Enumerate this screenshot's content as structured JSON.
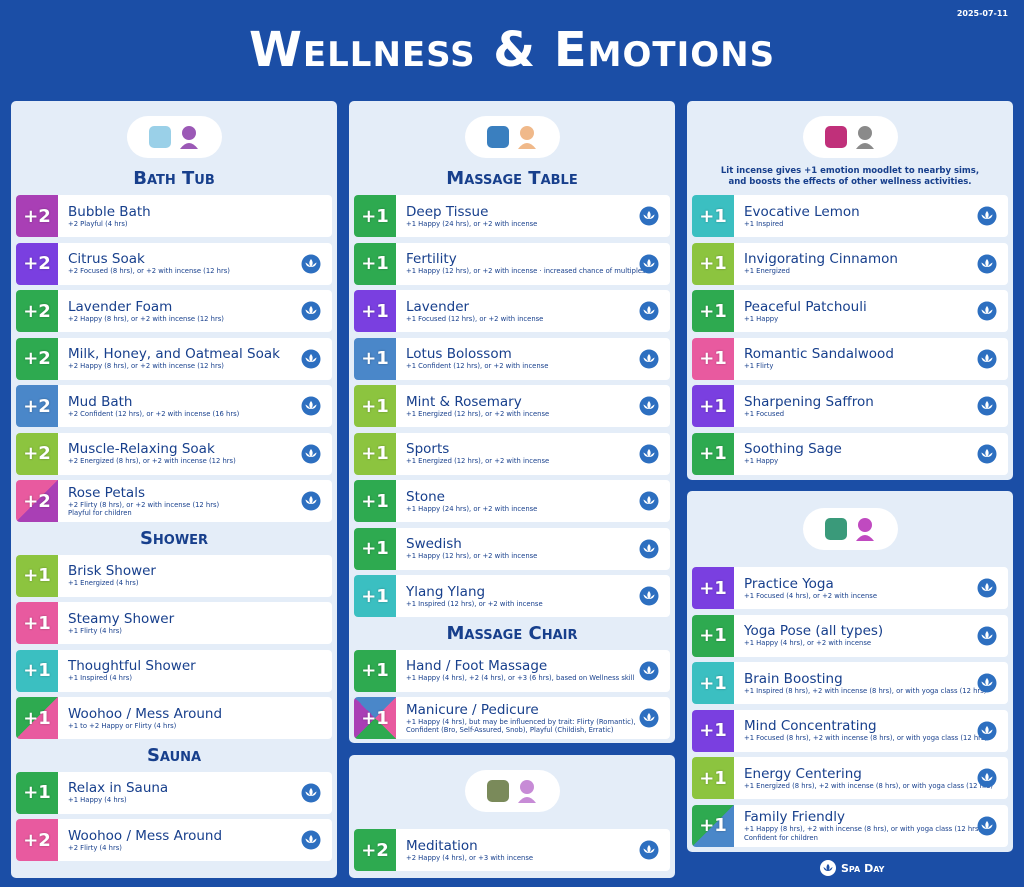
{
  "header": {
    "title": "Wellness & Emotions",
    "date": "2025-07-11"
  },
  "columns": [
    {
      "cards": [
        {
          "sections": [
            {
              "heading": "Bath Tub",
              "items": [
                {
                  "badge": "+2",
                  "name": "Bubble Bath",
                  "details": [
                    "+2 Playful (4 hrs)"
                  ],
                  "colors": [
                    "#a93fb5"
                  ],
                  "incense": false
                },
                {
                  "badge": "+2",
                  "name": "Citrus Soak",
                  "details": [
                    "+2 Focused (8 hrs), or +2 with incense (12 hrs)"
                  ],
                  "colors": [
                    "#7a3fe0"
                  ],
                  "incense": true
                },
                {
                  "badge": "+2",
                  "name": "Lavender Foam",
                  "details": [
                    "+2 Happy (8 hrs), or +2 with incense (12 hrs)"
                  ],
                  "colors": [
                    "#2eaa50"
                  ],
                  "incense": true
                },
                {
                  "badge": "+2",
                  "name": "Milk, Honey, and Oatmeal Soak",
                  "details": [
                    "+2 Happy (8 hrs), or +2 with incense (12 hrs)"
                  ],
                  "colors": [
                    "#2eaa50"
                  ],
                  "incense": true
                },
                {
                  "badge": "+2",
                  "name": "Mud Bath",
                  "details": [
                    "+2 Confident (12 hrs), or +2 with incense (16 hrs)"
                  ],
                  "colors": [
                    "#4a87c9"
                  ],
                  "incense": true
                },
                {
                  "badge": "+2",
                  "name": "Muscle-Relaxing Soak",
                  "details": [
                    "+2 Energized (8 hrs), or +2 with incense (12 hrs)"
                  ],
                  "colors": [
                    "#8cc43f"
                  ],
                  "incense": true
                },
                {
                  "badge": "+2",
                  "name": "Rose Petals",
                  "details": [
                    "+2 Flirty (8 hrs), or +2 with incense (12 hrs)",
                    "Playful for children"
                  ],
                  "colors": [
                    "#e85a9f",
                    "#a93fb5"
                  ],
                  "incense": true
                }
              ]
            },
            {
              "heading": "Shower",
              "items": [
                {
                  "badge": "+1",
                  "name": "Brisk Shower",
                  "details": [
                    "+1 Energized (4 hrs)"
                  ],
                  "colors": [
                    "#8cc43f"
                  ],
                  "incense": false
                },
                {
                  "badge": "+1",
                  "name": "Steamy Shower",
                  "details": [
                    "+1 Flirty (4 hrs)"
                  ],
                  "colors": [
                    "#e85a9f"
                  ],
                  "incense": false
                },
                {
                  "badge": "+1",
                  "name": "Thoughtful Shower",
                  "details": [
                    "+1 Inspired (4 hrs)"
                  ],
                  "colors": [
                    "#3bbfc1"
                  ],
                  "incense": false
                },
                {
                  "badge": "+1",
                  "name": "Woohoo / Mess Around",
                  "details": [
                    "+1 to +2 Happy or Flirty (4 hrs)"
                  ],
                  "colors": [
                    "#2eaa50",
                    "#e85a9f"
                  ],
                  "incense": false
                }
              ]
            },
            {
              "heading": "Sauna",
              "items": [
                {
                  "badge": "+1",
                  "name": "Relax in Sauna",
                  "details": [
                    "+1 Happy (4 hrs)"
                  ],
                  "colors": [
                    "#2eaa50"
                  ],
                  "incense": true
                },
                {
                  "badge": "+2",
                  "name": "Woohoo / Mess Around",
                  "details": [
                    "+2 Flirty (4 hrs)"
                  ],
                  "colors": [
                    "#e85a9f"
                  ],
                  "incense": true
                }
              ]
            }
          ]
        }
      ]
    },
    {
      "cards": [
        {
          "sections": [
            {
              "heading": "Massage Table",
              "items": [
                {
                  "badge": "+1",
                  "name": "Deep Tissue",
                  "details": [
                    "+1 Happy (24 hrs), or +2 with incense"
                  ],
                  "colors": [
                    "#2eaa50"
                  ],
                  "incense": true
                },
                {
                  "badge": "+1",
                  "name": "Fertility",
                  "details": [
                    "+1 Happy (12 hrs), or +2 with incense · increased chance of multiples"
                  ],
                  "colors": [
                    "#2eaa50"
                  ],
                  "incense": true
                },
                {
                  "badge": "+1",
                  "name": "Lavender",
                  "details": [
                    "+1 Focused (12 hrs), or +2 with incense"
                  ],
                  "colors": [
                    "#7a3fe0"
                  ],
                  "incense": true
                },
                {
                  "badge": "+1",
                  "name": "Lotus Bolossom",
                  "details": [
                    "+1 Confident (12 hrs), or +2 with incense"
                  ],
                  "colors": [
                    "#4a87c9"
                  ],
                  "incense": true
                },
                {
                  "badge": "+1",
                  "name": "Mint & Rosemary",
                  "details": [
                    "+1 Energized (12 hrs), or +2 with incense"
                  ],
                  "colors": [
                    "#8cc43f"
                  ],
                  "incense": true
                },
                {
                  "badge": "+1",
                  "name": "Sports",
                  "details": [
                    "+1 Energized (12 hrs), or +2 with incense"
                  ],
                  "colors": [
                    "#8cc43f"
                  ],
                  "incense": true
                },
                {
                  "badge": "+1",
                  "name": "Stone",
                  "details": [
                    "+1 Happy (24 hrs), or +2 with incense"
                  ],
                  "colors": [
                    "#2eaa50"
                  ],
                  "incense": true
                },
                {
                  "badge": "+1",
                  "name": "Swedish",
                  "details": [
                    "+1 Happy (12 hrs), or +2 with incense"
                  ],
                  "colors": [
                    "#2eaa50"
                  ],
                  "incense": true
                },
                {
                  "badge": "+1",
                  "name": "Ylang Ylang",
                  "details": [
                    "+1 Inspired (12 hrs), or +2 with incense"
                  ],
                  "colors": [
                    "#3bbfc1"
                  ],
                  "incense": true
                }
              ]
            },
            {
              "heading": "Massage Chair",
              "items": [
                {
                  "badge": "+1",
                  "name": "Hand / Foot Massage",
                  "details": [
                    "+1 Happy (4 hrs), +2 (4 hrs), or +3 (6 hrs), based on Wellness skill"
                  ],
                  "colors": [
                    "#2eaa50"
                  ],
                  "incense": true
                },
                {
                  "badge": "+1",
                  "name": "Manicure / Pedicure",
                  "details": [
                    "+1 Happy (4 hrs), but may be influenced by trait: Flirty (Romantic),",
                    "Confident (Bro, Self-Assured, Snob), Playful (Childish, Erratic)"
                  ],
                  "colors": [
                    "#4a87c9",
                    "#e85a9f",
                    "#2eaa50",
                    "#a93fb5"
                  ],
                  "incense": true
                }
              ]
            }
          ]
        },
        {
          "sections": [
            {
              "items": [
                {
                  "badge": "+2",
                  "name": "Meditation",
                  "details": [
                    "+2 Happy (4 hrs), or +3 with incense"
                  ],
                  "colors": [
                    "#2eaa50"
                  ],
                  "incense": true
                }
              ]
            }
          ]
        }
      ]
    },
    {
      "cards": [
        {
          "note": [
            "Lit incense gives +1 emotion moodlet to nearby sims,",
            "and boosts the effects of other wellness activities."
          ],
          "sections": [
            {
              "items": [
                {
                  "badge": "+1",
                  "name": "Evocative Lemon",
                  "details": [
                    "+1 Inspired"
                  ],
                  "colors": [
                    "#3bbfc1"
                  ],
                  "incense": true
                },
                {
                  "badge": "+1",
                  "name": "Invigorating Cinnamon",
                  "details": [
                    "+1 Energized"
                  ],
                  "colors": [
                    "#8cc43f"
                  ],
                  "incense": true
                },
                {
                  "badge": "+1",
                  "name": "Peaceful Patchouli",
                  "details": [
                    "+1 Happy"
                  ],
                  "colors": [
                    "#2eaa50"
                  ],
                  "incense": true
                },
                {
                  "badge": "+1",
                  "name": "Romantic Sandalwood",
                  "details": [
                    "+1 Flirty"
                  ],
                  "colors": [
                    "#e85a9f"
                  ],
                  "incense": true
                },
                {
                  "badge": "+1",
                  "name": "Sharpening Saffron",
                  "details": [
                    "+1 Focused"
                  ],
                  "colors": [
                    "#7a3fe0"
                  ],
                  "incense": true
                },
                {
                  "badge": "+1",
                  "name": "Soothing Sage",
                  "details": [
                    "+1 Happy"
                  ],
                  "colors": [
                    "#2eaa50"
                  ],
                  "incense": true
                }
              ]
            }
          ]
        },
        {
          "sections": [
            {
              "items": [
                {
                  "badge": "+1",
                  "name": "Practice Yoga",
                  "details": [
                    "+1 Focused (4 hrs), or +2 with incense"
                  ],
                  "colors": [
                    "#7a3fe0"
                  ],
                  "incense": true
                },
                {
                  "badge": "+1",
                  "name": "Yoga Pose (all types)",
                  "details": [
                    "+1 Happy (4 hrs), or +2 with incense"
                  ],
                  "colors": [
                    "#2eaa50"
                  ],
                  "incense": true
                },
                {
                  "badge": "+1",
                  "name": "Brain Boosting",
                  "details": [
                    "+1 Inspired (8 hrs), +2 with incense (8 hrs), or with yoga class (12 hrs)"
                  ],
                  "colors": [
                    "#3bbfc1"
                  ],
                  "incense": true
                },
                {
                  "badge": "+1",
                  "name": "Mind Concentrating",
                  "details": [
                    "+1 Focused (8 hrs), +2 with incense (8 hrs), or with yoga class (12 hrs)"
                  ],
                  "colors": [
                    "#7a3fe0"
                  ],
                  "incense": true
                },
                {
                  "badge": "+1",
                  "name": "Energy Centering",
                  "details": [
                    "+1 Energized (8 hrs), +2 with incense (8 hrs), or with yoga class (12 hrs)"
                  ],
                  "colors": [
                    "#8cc43f"
                  ],
                  "incense": true
                },
                {
                  "badge": "+1",
                  "name": "Family Friendly",
                  "details": [
                    "+1 Happy (8 hrs), +2 with incense (8 hrs), or with yoga class (12 hrs)",
                    "Confident for children"
                  ],
                  "colors": [
                    "#2eaa50",
                    "#4a87c9"
                  ],
                  "incense": true
                }
              ]
            }
          ]
        }
      ]
    }
  ],
  "footer": "Spa Day"
}
